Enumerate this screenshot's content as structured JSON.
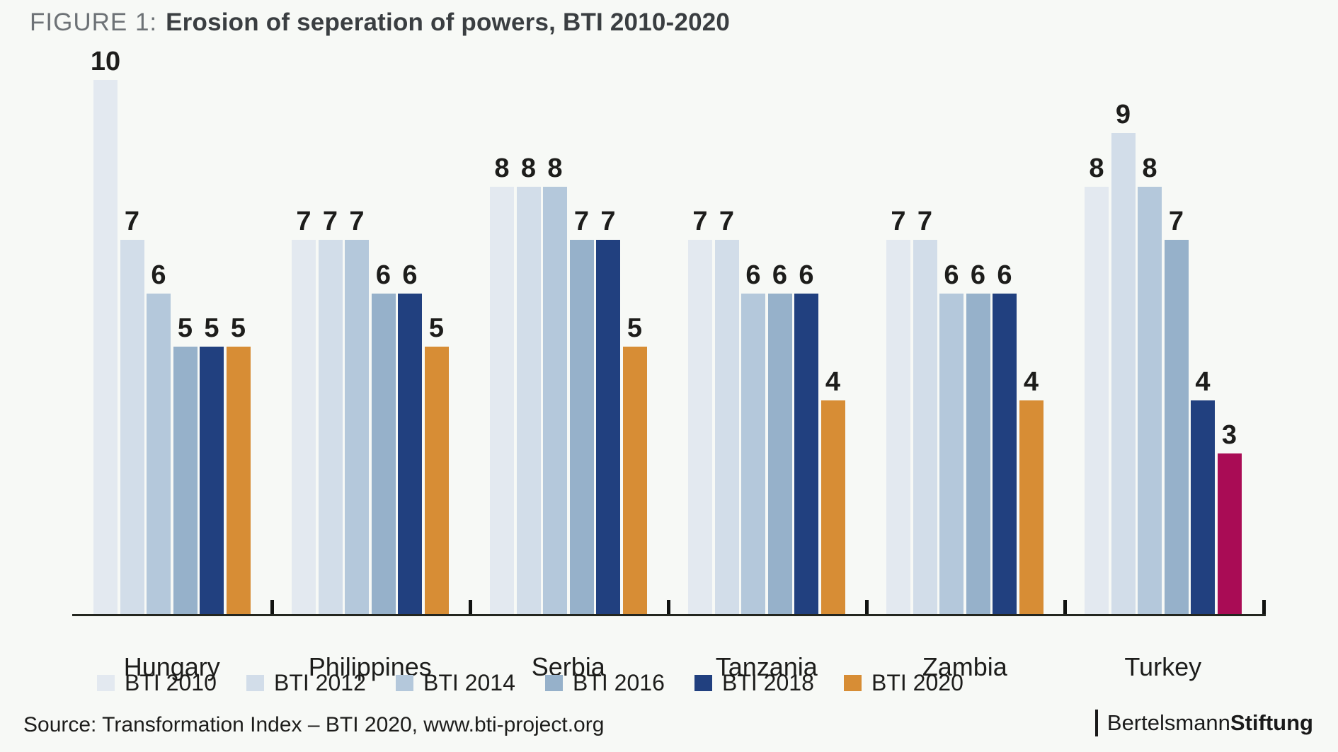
{
  "title": {
    "figure_label": "FIGURE 1:",
    "text": "Erosion of seperation of powers, BTI 2010-2020"
  },
  "chart_data": {
    "type": "bar",
    "title": "Erosion of seperation of powers, BTI 2010-2020",
    "categories": [
      "Hungary",
      "Philippines",
      "Serbia",
      "Tanzania",
      "Zambia",
      "Turkey"
    ],
    "series": [
      {
        "name": "BTI 2010",
        "color": "#e3e9f0",
        "values": [
          10,
          7,
          8,
          7,
          7,
          8
        ]
      },
      {
        "name": "BTI 2012",
        "color": "#d2dde9",
        "values": [
          7,
          7,
          8,
          7,
          7,
          9
        ]
      },
      {
        "name": "BTI 2014",
        "color": "#b4c8db",
        "values": [
          6,
          7,
          8,
          6,
          6,
          8
        ]
      },
      {
        "name": "BTI 2016",
        "color": "#96b1ca",
        "values": [
          5,
          6,
          7,
          6,
          6,
          7
        ]
      },
      {
        "name": "BTI 2018",
        "color": "#21407f",
        "values": [
          5,
          6,
          7,
          6,
          6,
          4
        ]
      },
      {
        "name": "BTI 2020",
        "color": "#d78d35",
        "values": [
          5,
          5,
          5,
          4,
          4,
          3
        ]
      }
    ],
    "highlight": {
      "category": "Turkey",
      "series": "BTI 2020",
      "color": "#a90c55"
    },
    "ylim": [
      0,
      10
    ],
    "xlabel": "",
    "ylabel": "",
    "value_labels": true,
    "grid": false,
    "legend_position": "bottom"
  },
  "footer": {
    "source": "Source: Transformation Index – BTI 2020, www.bti-project.org",
    "brand": {
      "name_regular": "Bertelsmann",
      "name_bold": "Stiftung"
    }
  },
  "colors": {
    "background": "#f7f9f6",
    "axis": "#23261f",
    "text": "#1d1d1b",
    "figure_label": "#6d7276",
    "title_text": "#3a3e41"
  }
}
